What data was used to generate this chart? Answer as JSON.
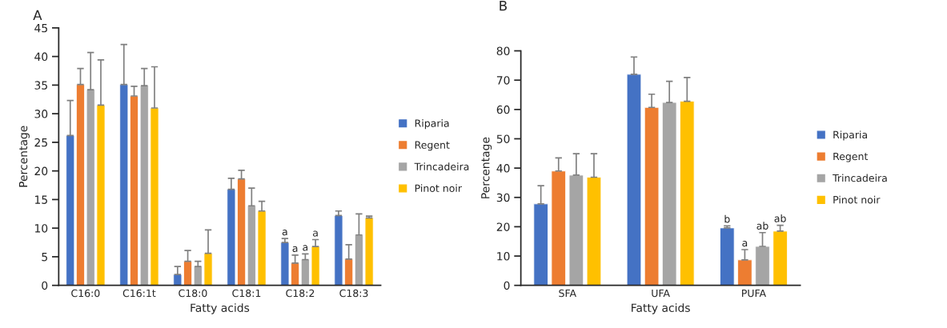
{
  "chart_data": [
    {
      "type": "bar",
      "title": "A",
      "xlabel": "Fatty acids",
      "ylabel": "Percentage",
      "categories": [
        "C16:0",
        "C16:1t",
        "C18:0",
        "C18:1",
        "C18:2",
        "C18:3"
      ],
      "ylim": [
        0,
        45
      ],
      "yticks": [
        0,
        5,
        10,
        15,
        20,
        25,
        30,
        35,
        40,
        45
      ],
      "grid": false,
      "legend": "right",
      "series": [
        {
          "name": "Riparia",
          "color": "#4472c4",
          "values": [
            26.2,
            35.1,
            1.9,
            16.8,
            7.5,
            12.2
          ],
          "errors": [
            [
              26.2,
              32.3
            ],
            [
              35.1,
              42.1
            ],
            [
              1.9,
              3.3
            ],
            [
              16.8,
              18.7
            ],
            [
              7.5,
              8.2
            ],
            [
              12.2,
              13.0
            ]
          ],
          "value_labels": [
            null,
            null,
            null,
            null,
            "a",
            null
          ]
        },
        {
          "name": "Regent",
          "color": "#ed7d31",
          "values": [
            35.1,
            33.1,
            4.2,
            18.6,
            3.9,
            4.6
          ],
          "errors": [
            [
              35.1,
              37.9
            ],
            [
              33.1,
              34.8
            ],
            [
              4.2,
              6.1
            ],
            [
              18.6,
              20.1
            ],
            [
              3.9,
              5.3
            ],
            [
              4.6,
              7.1
            ]
          ],
          "value_labels": [
            null,
            null,
            null,
            null,
            "a",
            null
          ]
        },
        {
          "name": "Trincadeira",
          "color": "#a5a5a5",
          "values": [
            34.2,
            34.9,
            3.3,
            13.9,
            4.5,
            8.8
          ],
          "errors": [
            [
              34.2,
              40.7
            ],
            [
              34.9,
              37.9
            ],
            [
              3.3,
              4.2
            ],
            [
              13.9,
              17.0
            ],
            [
              4.5,
              5.5
            ],
            [
              8.8,
              12.5
            ]
          ],
          "value_labels": [
            null,
            null,
            null,
            null,
            "a",
            null
          ]
        },
        {
          "name": "Pinot noir",
          "color": "#ffc000",
          "values": [
            31.5,
            31.0,
            5.6,
            13.0,
            6.8,
            11.8
          ],
          "errors": [
            [
              31.5,
              39.4
            ],
            [
              31.0,
              38.2
            ],
            [
              5.6,
              9.7
            ],
            [
              13.0,
              14.7
            ],
            [
              6.8,
              8.0
            ],
            [
              11.8,
              12.1
            ]
          ],
          "value_labels": [
            null,
            null,
            null,
            null,
            "a",
            null
          ]
        }
      ]
    },
    {
      "type": "bar",
      "title": "B",
      "xlabel": "Fatty acids",
      "ylabel": "Percentage",
      "categories": [
        "SFA",
        "UFA",
        "PUFA"
      ],
      "ylim": [
        0,
        80
      ],
      "yticks": [
        0,
        10,
        20,
        30,
        40,
        50,
        60,
        70,
        80
      ],
      "grid": false,
      "legend": "right",
      "series": [
        {
          "name": "Riparia",
          "color": "#4472c4",
          "values": [
            27.8,
            72.0,
            19.6
          ],
          "errors": [
            [
              27.8,
              34.0
            ],
            [
              72.0,
              77.9
            ],
            [
              19.6,
              20.3
            ]
          ],
          "value_labels": [
            null,
            null,
            "b"
          ]
        },
        {
          "name": "Regent",
          "color": "#ed7d31",
          "values": [
            39.0,
            60.7,
            8.7
          ],
          "errors": [
            [
              39.0,
              43.5
            ],
            [
              60.7,
              65.2
            ],
            [
              8.7,
              12.2
            ]
          ],
          "value_labels": [
            null,
            null,
            "a"
          ]
        },
        {
          "name": "Trincadeira",
          "color": "#a5a5a5",
          "values": [
            37.6,
            62.4,
            13.3
          ],
          "errors": [
            [
              37.6,
              44.9
            ],
            [
              62.4,
              69.6
            ],
            [
              13.3,
              18.0
            ]
          ],
          "value_labels": [
            null,
            null,
            "ab"
          ]
        },
        {
          "name": "Pinot noir",
          "color": "#ffc000",
          "values": [
            36.9,
            62.8,
            18.5
          ],
          "errors": [
            [
              36.9,
              44.9
            ],
            [
              62.8,
              70.9
            ],
            [
              18.5,
              20.5
            ]
          ],
          "value_labels": [
            null,
            null,
            "ab"
          ]
        }
      ]
    }
  ]
}
